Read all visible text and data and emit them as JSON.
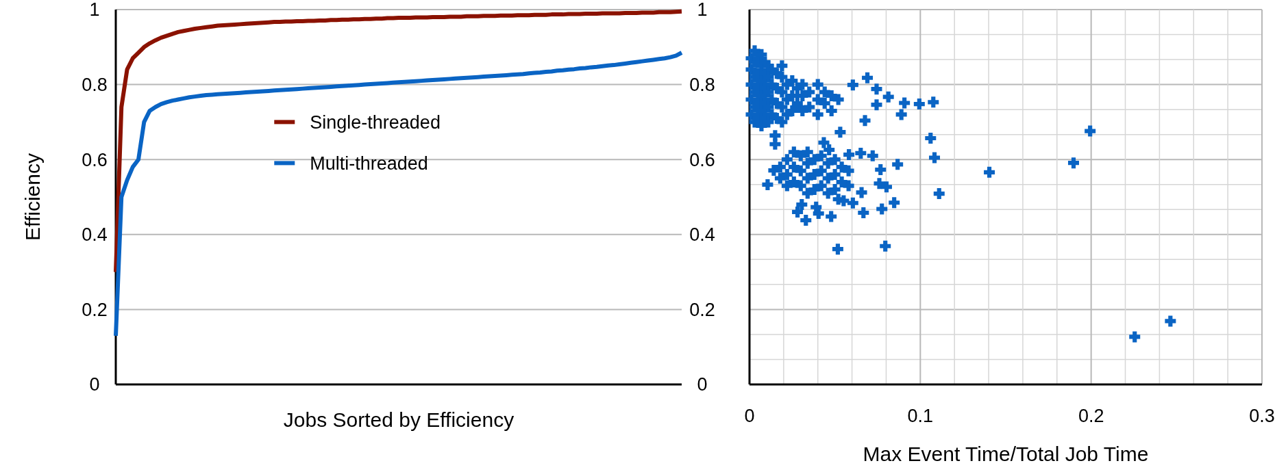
{
  "chart_data": [
    {
      "type": "line",
      "xlabel": "Jobs Sorted by Efficiency",
      "ylabel": "Efficiency",
      "categories": [
        null,
        null,
        null,
        null,
        null,
        null,
        null,
        null,
        null,
        null,
        null,
        null,
        null,
        null,
        null,
        null,
        null,
        null,
        null,
        null,
        null,
        null,
        null,
        null,
        null,
        null,
        null,
        null,
        null,
        null,
        null,
        null,
        null,
        null,
        null,
        null,
        null,
        null,
        null,
        null,
        null,
        null,
        null,
        null,
        null,
        null,
        null,
        null,
        null,
        null,
        null,
        null,
        null,
        null,
        null,
        null,
        null,
        null,
        null,
        null,
        null,
        null,
        null,
        null,
        null,
        null,
        null,
        null,
        null,
        null,
        null,
        null,
        null,
        null,
        null,
        null,
        null,
        null,
        null,
        null,
        null,
        null,
        null,
        null,
        null,
        null,
        null,
        null,
        null,
        null,
        null,
        null,
        null,
        null,
        null,
        null,
        null,
        null,
        null,
        null,
        null
      ],
      "ylim": [
        0,
        1
      ],
      "yticks": [
        0,
        0.2,
        0.4,
        0.6,
        0.8,
        1
      ],
      "tick_labels": "y",
      "grid": "y",
      "legend": "center",
      "line_style": "solid",
      "series": [
        {
          "name": "Single-threaded",
          "color": "#8b1200",
          "values": [
            0.3,
            0.74,
            0.84,
            0.87,
            0.885,
            0.9,
            0.91,
            0.918,
            0.925,
            0.93,
            0.935,
            0.94,
            0.943,
            0.946,
            0.949,
            0.951,
            0.953,
            0.955,
            0.957,
            0.958,
            0.959,
            0.96,
            0.961,
            0.962,
            0.963,
            0.964,
            0.965,
            0.966,
            0.967,
            0.967,
            0.968,
            0.968,
            0.969,
            0.969,
            0.97,
            0.97,
            0.971,
            0.971,
            0.972,
            0.972,
            0.973,
            0.973,
            0.974,
            0.974,
            0.975,
            0.975,
            0.976,
            0.976,
            0.977,
            0.977,
            0.978,
            0.978,
            0.978,
            0.979,
            0.979,
            0.979,
            0.98,
            0.98,
            0.98,
            0.981,
            0.981,
            0.981,
            0.982,
            0.982,
            0.982,
            0.983,
            0.983,
            0.983,
            0.984,
            0.984,
            0.984,
            0.985,
            0.985,
            0.985,
            0.986,
            0.986,
            0.986,
            0.987,
            0.987,
            0.987,
            0.988,
            0.988,
            0.988,
            0.989,
            0.989,
            0.989,
            0.99,
            0.99,
            0.99,
            0.99,
            0.991,
            0.991,
            0.991,
            0.992,
            0.992,
            0.992,
            0.993,
            0.993,
            0.993,
            0.994,
            0.995
          ]
        },
        {
          "name": "Multi-threaded",
          "color": "#0a64c4",
          "values": [
            0.13,
            0.5,
            0.545,
            0.58,
            0.6,
            0.7,
            0.73,
            0.74,
            0.748,
            0.753,
            0.757,
            0.76,
            0.763,
            0.766,
            0.768,
            0.77,
            0.772,
            0.773,
            0.774,
            0.775,
            0.776,
            0.777,
            0.778,
            0.779,
            0.78,
            0.781,
            0.782,
            0.783,
            0.784,
            0.785,
            0.786,
            0.787,
            0.788,
            0.789,
            0.79,
            0.791,
            0.792,
            0.793,
            0.794,
            0.795,
            0.796,
            0.797,
            0.798,
            0.799,
            0.8,
            0.801,
            0.802,
            0.803,
            0.804,
            0.805,
            0.806,
            0.807,
            0.808,
            0.809,
            0.81,
            0.811,
            0.812,
            0.813,
            0.814,
            0.815,
            0.816,
            0.817,
            0.818,
            0.819,
            0.82,
            0.821,
            0.822,
            0.823,
            0.824,
            0.825,
            0.826,
            0.827,
            0.828,
            0.83,
            0.831,
            0.832,
            0.834,
            0.835,
            0.837,
            0.838,
            0.84,
            0.841,
            0.843,
            0.844,
            0.846,
            0.847,
            0.849,
            0.851,
            0.852,
            0.854,
            0.856,
            0.858,
            0.86,
            0.862,
            0.864,
            0.866,
            0.868,
            0.87,
            0.873,
            0.877,
            0.885
          ]
        }
      ]
    },
    {
      "type": "scatter",
      "xlabel": "Max Event Time/Total Job Time",
      "xlim": [
        0,
        0.3
      ],
      "xticks": [
        0,
        {
          "value": 0.02,
          "label": null
        },
        {
          "value": 0.04,
          "label": null
        },
        {
          "value": 0.06,
          "label": null
        },
        {
          "value": 0.08,
          "label": null
        },
        0.1,
        {
          "value": 0.12,
          "label": null
        },
        {
          "value": 0.14,
          "label": null
        },
        {
          "value": 0.16,
          "label": null
        },
        {
          "value": 0.18,
          "label": null
        },
        0.2,
        {
          "value": 0.22,
          "label": null
        },
        {
          "value": 0.24,
          "label": null
        },
        {
          "value": 0.26,
          "label": null
        },
        {
          "value": 0.28,
          "label": null
        },
        0.3
      ],
      "ylim": [
        0,
        1
      ],
      "yticks": [
        0,
        {
          "value": 0.0667,
          "label": null
        },
        {
          "value": 0.1333,
          "label": null
        },
        0.2,
        {
          "value": 0.2667,
          "label": null
        },
        {
          "value": 0.3333,
          "label": null
        },
        0.4,
        {
          "value": 0.4667,
          "label": null
        },
        {
          "value": 0.5333,
          "label": null
        },
        0.6,
        {
          "value": 0.6667,
          "label": null
        },
        {
          "value": 0.7333,
          "label": null
        },
        0.8,
        {
          "value": 0.8667,
          "label": null
        },
        {
          "value": 0.9333,
          "label": null
        },
        1
      ],
      "grid": true,
      "marker": "cross",
      "series": [
        {
          "color": "#0a64c4",
          "x": [
            0.1076,
            0.0994,
            0.0907,
            0.0889,
            0.069,
            0.0605,
            0.0744,
            0.0813,
            0.0744,
            0.0676,
            0.0531,
            0.106,
            0.1083,
            0.111,
            0.1404,
            0.1897,
            0.1994,
            0.0517,
            0.0795,
            0.0867,
            0.0847,
            0.0775,
            0.0667,
            0.0478,
            0.033,
            0.0281,
            0.0404,
            0.0605,
            0.0656,
            0.0802,
            0.076,
            0.0767,
            0.0721,
            0.0651,
            0.0582,
            0.0106,
            0.0142,
            0.015,
            0.015,
            0.0435,
            0.0466,
            0.0306,
            0.039,
            0.052,
            0.0551,
            0.2255,
            0.2464,
            0.001,
            0.001,
            0.001,
            0.001,
            0.001,
            0.003,
            0.003,
            0.003,
            0.003,
            0.003,
            0.003,
            0.005,
            0.005,
            0.005,
            0.005,
            0.005,
            0.007,
            0.007,
            0.007,
            0.007,
            0.007,
            0.007,
            0.009,
            0.009,
            0.009,
            0.009,
            0.009,
            0.011,
            0.011,
            0.011,
            0.011,
            0.011,
            0.013,
            0.013,
            0.013,
            0.013,
            0.016,
            0.016,
            0.016,
            0.016,
            0.019,
            0.019,
            0.019,
            0.019,
            0.019,
            0.022,
            0.022,
            0.022,
            0.025,
            0.025,
            0.025,
            0.028,
            0.028,
            0.028,
            0.031,
            0.031,
            0.031,
            0.035,
            0.035,
            0.04,
            0.04,
            0.04,
            0.044,
            0.044,
            0.048,
            0.048,
            0.052,
            0.018,
            0.018,
            0.022,
            0.022,
            0.022,
            0.026,
            0.026,
            0.026,
            0.03,
            0.03,
            0.03,
            0.034,
            0.034,
            0.034,
            0.034,
            0.038,
            0.038,
            0.038,
            0.042,
            0.042,
            0.042,
            0.046,
            0.046,
            0.046,
            0.05,
            0.05,
            0.05,
            0.054,
            0.054,
            0.058,
            0.058
          ],
          "values": [
            0.753,
            0.748,
            0.751,
            0.72,
            0.818,
            0.799,
            0.788,
            0.767,
            0.746,
            0.704,
            0.673,
            0.657,
            0.605,
            0.509,
            0.566,
            0.591,
            0.676,
            0.361,
            0.369,
            0.587,
            0.485,
            0.468,
            0.458,
            0.448,
            0.438,
            0.46,
            0.456,
            0.484,
            0.512,
            0.527,
            0.536,
            0.573,
            0.61,
            0.617,
            0.613,
            0.533,
            0.571,
            0.641,
            0.664,
            0.645,
            0.626,
            0.48,
            0.473,
            0.494,
            0.49,
            0.127,
            0.169,
            0.72,
            0.76,
            0.8,
            0.84,
            0.87,
            0.7,
            0.74,
            0.78,
            0.82,
            0.86,
            0.89,
            0.71,
            0.75,
            0.79,
            0.83,
            0.87,
            0.69,
            0.73,
            0.77,
            0.81,
            0.85,
            0.88,
            0.71,
            0.75,
            0.79,
            0.83,
            0.86,
            0.7,
            0.74,
            0.78,
            0.82,
            0.85,
            0.72,
            0.76,
            0.8,
            0.84,
            0.71,
            0.75,
            0.79,
            0.83,
            0.7,
            0.74,
            0.78,
            0.82,
            0.85,
            0.72,
            0.76,
            0.8,
            0.73,
            0.77,
            0.81,
            0.75,
            0.79,
            0.74,
            0.77,
            0.73,
            0.8,
            0.78,
            0.74,
            0.76,
            0.72,
            0.8,
            0.75,
            0.78,
            0.77,
            0.73,
            0.76,
            0.58,
            0.55,
            0.6,
            0.56,
            0.53,
            0.62,
            0.58,
            0.54,
            0.61,
            0.57,
            0.53,
            0.62,
            0.59,
            0.55,
            0.51,
            0.6,
            0.56,
            0.52,
            0.61,
            0.57,
            0.53,
            0.59,
            0.55,
            0.51,
            0.6,
            0.56,
            0.52,
            0.58,
            0.54,
            0.57,
            0.53
          ]
        }
      ]
    }
  ]
}
